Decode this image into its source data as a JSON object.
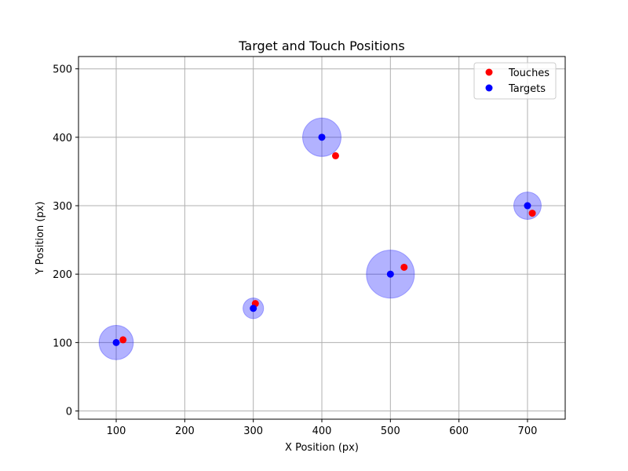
{
  "chart_data": {
    "type": "scatter",
    "title": "Target and Touch Positions",
    "xlabel": "X Position (px)",
    "ylabel": "Y Position (px)",
    "xlim": [
      45,
      755
    ],
    "ylim": [
      -12,
      518
    ],
    "xticks": [
      100,
      200,
      300,
      400,
      500,
      600,
      700
    ],
    "yticks": [
      0,
      100,
      200,
      300,
      400,
      500
    ],
    "grid": true,
    "legend_placement": "top-right",
    "series": [
      {
        "name": "Touches",
        "color": "#ff0000",
        "points": [
          {
            "x": 110,
            "y": 104
          },
          {
            "x": 303,
            "y": 157
          },
          {
            "x": 420,
            "y": 373
          },
          {
            "x": 520,
            "y": 210
          },
          {
            "x": 707,
            "y": 289
          }
        ]
      },
      {
        "name": "Targets",
        "color": "#0000ff",
        "points": [
          {
            "x": 100,
            "y": 100
          },
          {
            "x": 300,
            "y": 150
          },
          {
            "x": 400,
            "y": 400
          },
          {
            "x": 500,
            "y": 200
          },
          {
            "x": 700,
            "y": 300
          }
        ]
      }
    ],
    "target_areas": {
      "color": "#0000ff",
      "opacity": 0.3,
      "radius": [
        25,
        15,
        28,
        35,
        20
      ]
    }
  }
}
